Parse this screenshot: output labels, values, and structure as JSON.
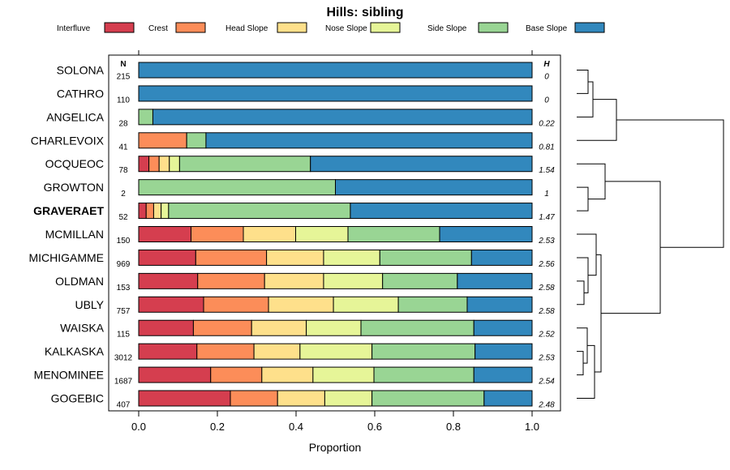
{
  "chart_data": {
    "type": "bar",
    "stacked": true,
    "orientation": "horizontal",
    "title": "Hills: sibling",
    "xlabel": "Proportion",
    "xlim": [
      0,
      1
    ],
    "xticks": [
      "0.0",
      "0.2",
      "0.4",
      "0.6",
      "0.8",
      "1.0"
    ],
    "n_header": "N",
    "h_header": "H",
    "highlight": "GRAVERAET",
    "series": [
      {
        "name": "Interfluve",
        "color": "#d53e4f"
      },
      {
        "name": "Crest",
        "color": "#fc8d59"
      },
      {
        "name": "Head Slope",
        "color": "#fee08b"
      },
      {
        "name": "Nose Slope",
        "color": "#e6f598"
      },
      {
        "name": "Side Slope",
        "color": "#99d594"
      },
      {
        "name": "Base Slope",
        "color": "#3288bd"
      }
    ],
    "rows": [
      {
        "name": "SOLONA",
        "n": "215",
        "h": "0",
        "values": [
          0,
          0,
          0,
          0,
          0,
          1.0
        ]
      },
      {
        "name": "CATHRO",
        "n": "110",
        "h": "0",
        "values": [
          0,
          0,
          0,
          0,
          0,
          1.0
        ]
      },
      {
        "name": "ANGELICA",
        "n": "28",
        "h": "0.22",
        "values": [
          0,
          0,
          0,
          0,
          0.036,
          0.964
        ]
      },
      {
        "name": "CHARLEVOIX",
        "n": "41",
        "h": "0.81",
        "values": [
          0,
          0.122,
          0,
          0,
          0.049,
          0.829
        ]
      },
      {
        "name": "OCQUEOC",
        "n": "78",
        "h": "1.54",
        "values": [
          0.026,
          0.026,
          0.026,
          0.026,
          0.333,
          0.564
        ]
      },
      {
        "name": "GROWTON",
        "n": "2",
        "h": "1",
        "values": [
          0,
          0,
          0,
          0,
          0.5,
          0.5
        ]
      },
      {
        "name": "GRAVERAET",
        "n": "52",
        "h": "1.47",
        "values": [
          0.019,
          0.019,
          0.019,
          0.019,
          0.462,
          0.462
        ]
      },
      {
        "name": "MCMILLAN",
        "n": "150",
        "h": "2.53",
        "values": [
          0.133,
          0.133,
          0.133,
          0.133,
          0.233,
          0.235
        ]
      },
      {
        "name": "MICHIGAMME",
        "n": "969",
        "h": "2.56",
        "values": [
          0.145,
          0.18,
          0.145,
          0.143,
          0.233,
          0.154
        ]
      },
      {
        "name": "OLDMAN",
        "n": "153",
        "h": "2.58",
        "values": [
          0.15,
          0.17,
          0.15,
          0.15,
          0.19,
          0.19
        ]
      },
      {
        "name": "UBLY",
        "n": "757",
        "h": "2.58",
        "values": [
          0.165,
          0.165,
          0.165,
          0.165,
          0.175,
          0.165
        ]
      },
      {
        "name": "WAISKA",
        "n": "115",
        "h": "2.52",
        "values": [
          0.139,
          0.148,
          0.139,
          0.139,
          0.287,
          0.148
        ]
      },
      {
        "name": "KALKASKA",
        "n": "3012",
        "h": "2.53",
        "values": [
          0.148,
          0.145,
          0.117,
          0.183,
          0.262,
          0.145
        ]
      },
      {
        "name": "MENOMINEE",
        "n": "1687",
        "h": "2.54",
        "values": [
          0.183,
          0.13,
          0.13,
          0.155,
          0.254,
          0.148
        ]
      },
      {
        "name": "GOGEBIC",
        "n": "407",
        "h": "2.48",
        "values": [
          0.233,
          0.12,
          0.12,
          0.12,
          0.285,
          0.122
        ]
      }
    ]
  }
}
